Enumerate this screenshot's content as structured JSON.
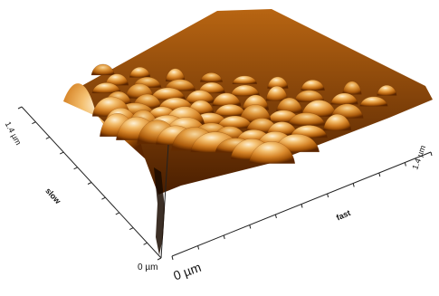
{
  "figure": {
    "type": "afm-3d-surface",
    "colormap": [
      "#5a2400",
      "#9a4a00",
      "#d07a1a",
      "#f0a94a",
      "#fce8c0"
    ]
  },
  "axes": {
    "y_axis_end_label": "1.4 µm",
    "y_axis_name": "slow",
    "origin_y_label": "0 µm",
    "origin_x_label": "0 µm",
    "x_axis_name": "fast",
    "x_axis_end_label": "1.4 µm"
  }
}
